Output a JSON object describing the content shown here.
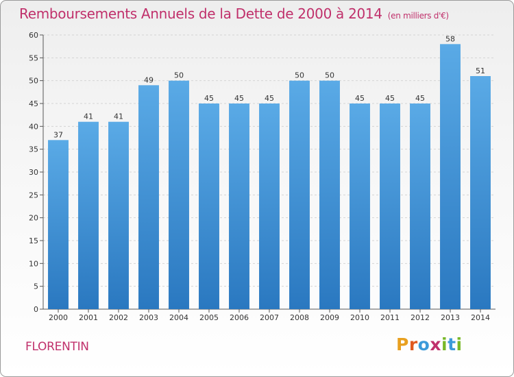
{
  "title": "Remboursements Annuels de la Dette de 2000 à 2014",
  "subtitle": "(en milliers d'€)",
  "commune": "FLORENTIN",
  "logo": {
    "letters": [
      "P",
      "r",
      "o",
      "x",
      "i",
      "t",
      "i"
    ],
    "colors": [
      "#e8a020",
      "#e05a20",
      "#3b9ad9",
      "#c0306b",
      "#78b828",
      "#3b9ad9",
      "#78b828"
    ]
  },
  "colors": {
    "bar_top": "#5aaae6",
    "bar_bottom": "#2a78c0",
    "title": "#c0306b"
  },
  "chart_data": {
    "type": "bar",
    "title": "Remboursements Annuels de la Dette de 2000 à 2014",
    "subtitle": "(en milliers d'€)",
    "categories": [
      "2000",
      "2001",
      "2002",
      "2003",
      "2004",
      "2005",
      "2006",
      "2007",
      "2008",
      "2009",
      "2010",
      "2011",
      "2012",
      "2013",
      "2014"
    ],
    "values": [
      37,
      41,
      41,
      49,
      50,
      45,
      45,
      45,
      50,
      50,
      45,
      45,
      45,
      58,
      51
    ],
    "ylim": [
      0,
      60
    ],
    "yticks": [
      0,
      5,
      10,
      15,
      20,
      25,
      30,
      35,
      40,
      45,
      50,
      55,
      60
    ],
    "grid": true,
    "data_labels": true
  }
}
